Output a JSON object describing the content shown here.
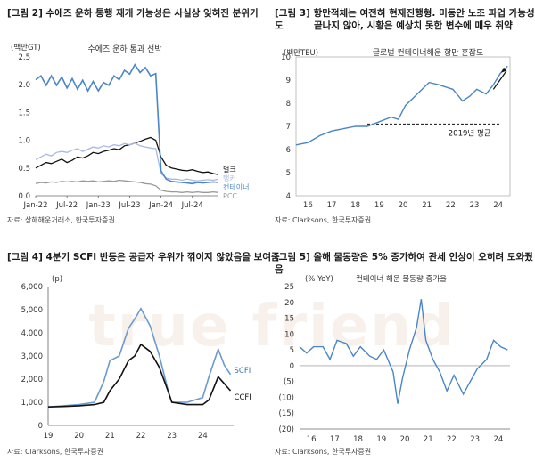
{
  "watermark": "true friend",
  "figures": [
    {
      "title": "[그림 2] 수에즈 운하 통행 재개 가능성은 사실상 잊혀진 분위기",
      "source": "자료: 상해해운거래소, 한국투자증권"
    },
    {
      "title_line1": "[그림 3] 항만적체는 여전히 현재진행형. 미동안 노조 파업 가능성도",
      "title_line2": "끝나지 않아, 시황은 예상치 못한 변수에 매우 취약",
      "source": "자료: Clarksons, 한국투자증권"
    },
    {
      "title": "[그림 4] 4분기 SCFI 반등은 공급자 우위가 꺾이지 않았음을 보여줌",
      "source": "자료: Clarksons, 한국투자증권"
    },
    {
      "title": "[그림 5] 올해 물동량은 5% 증가하여 관세 인상이 오히려 도와줬음",
      "source": "자료: Clarksons, 한국투자증권"
    }
  ],
  "chart_data": [
    {
      "type": "line",
      "title": "수에즈 운하 통과 선박",
      "ylabel": "(백만GT)",
      "ylim": [
        0,
        2.5
      ],
      "yticks": [
        "0.0",
        "0.5",
        "1.0",
        "1.5",
        "2.0",
        "2.5"
      ],
      "xticks": [
        "Jan-22",
        "Jul-22",
        "Jan-23",
        "Jul-23",
        "Jan-24",
        "Jul-24"
      ],
      "xtick_pos": [
        0,
        6,
        12,
        18,
        24,
        30
      ],
      "x_range_months": [
        0,
        35
      ],
      "legend": [
        "벌크",
        "탱커",
        "컨테이너",
        "PCC"
      ],
      "colors": [
        "#111111",
        "#aab8e6",
        "#4a86c8",
        "#999999"
      ],
      "series": [
        {
          "name": "벌크",
          "values": [
            0.5,
            0.55,
            0.6,
            0.58,
            0.62,
            0.66,
            0.6,
            0.64,
            0.7,
            0.68,
            0.72,
            0.78,
            0.76,
            0.8,
            0.82,
            0.85,
            0.83,
            0.9,
            0.92,
            0.95,
            0.98,
            1.02,
            1.05,
            1.0,
            0.7,
            0.55,
            0.5,
            0.48,
            0.46,
            0.45,
            0.47,
            0.44,
            0.42,
            0.43,
            0.4,
            0.38
          ]
        },
        {
          "name": "탱커",
          "values": [
            0.65,
            0.7,
            0.75,
            0.72,
            0.78,
            0.8,
            0.78,
            0.82,
            0.85,
            0.8,
            0.84,
            0.88,
            0.86,
            0.9,
            0.88,
            0.92,
            0.9,
            0.94,
            0.92,
            0.95,
            0.9,
            0.88,
            0.86,
            0.85,
            0.4,
            0.32,
            0.3,
            0.3,
            0.28,
            0.3,
            0.28,
            0.27,
            0.28,
            0.29,
            0.28,
            0.3
          ]
        },
        {
          "name": "컨테이너",
          "values": [
            2.15,
            2.1,
            2.05,
            2.1,
            2.05,
            2.08,
            2.0,
            2.05,
            1.98,
            2.02,
            1.95,
            2.0,
            1.95,
            1.98,
            2.05,
            2.1,
            2.15,
            2.2,
            2.25,
            2.3,
            2.28,
            2.25,
            2.22,
            2.2,
            0.45,
            0.3,
            0.26,
            0.25,
            0.24,
            0.23,
            0.22,
            0.24,
            0.23,
            0.24,
            0.25,
            0.24
          ]
        },
        {
          "name": "PCC",
          "values": [
            0.22,
            0.24,
            0.23,
            0.25,
            0.24,
            0.26,
            0.25,
            0.26,
            0.25,
            0.27,
            0.26,
            0.27,
            0.25,
            0.26,
            0.27,
            0.26,
            0.28,
            0.27,
            0.26,
            0.25,
            0.24,
            0.22,
            0.21,
            0.18,
            0.1,
            0.08,
            0.07,
            0.07,
            0.06,
            0.07,
            0.06,
            0.07,
            0.06,
            0.06,
            0.07,
            0.06
          ]
        }
      ]
    },
    {
      "type": "line",
      "title": "글로벌 컨테이너해운 항만 혼잡도",
      "ylabel": "(백만TEU)",
      "ylim": [
        4,
        10
      ],
      "yticks": [
        "4",
        "5",
        "6",
        "7",
        "8",
        "9",
        "10"
      ],
      "xticks": [
        "16",
        "17",
        "18",
        "19",
        "20",
        "21",
        "22",
        "23",
        "24"
      ],
      "x_range": [
        2016,
        2025
      ],
      "avg_label": "2019년 평균",
      "avg_value": 7.1,
      "series": [
        {
          "name": "항만 혼잡도",
          "x": [
            2016,
            2016.5,
            2017,
            2017.5,
            2018,
            2018.5,
            2019,
            2019.5,
            2020,
            2020.3,
            2020.6,
            2021,
            2021.3,
            2021.6,
            2022,
            2022.3,
            2022.6,
            2023,
            2023.3,
            2023.6,
            2024,
            2024.3,
            2024.6,
            2024.9
          ],
          "values": [
            6.2,
            6.3,
            6.6,
            6.8,
            6.9,
            7.0,
            7.0,
            7.2,
            7.4,
            7.3,
            7.9,
            8.3,
            8.6,
            8.9,
            8.8,
            8.7,
            8.6,
            8.1,
            8.3,
            8.6,
            8.4,
            8.8,
            9.3,
            9.6
          ]
        }
      ]
    },
    {
      "type": "line",
      "title": "",
      "ylabel": "(p)",
      "ylim": [
        0,
        6000
      ],
      "yticks": [
        "0",
        "1,000",
        "2,000",
        "3,000",
        "4,000",
        "5,000",
        "6,000"
      ],
      "xticks": [
        "19",
        "20",
        "21",
        "22",
        "23",
        "24"
      ],
      "x_range": [
        2019,
        2025
      ],
      "series": [
        {
          "name": "SCFI",
          "color": "#6a9bd1",
          "x": [
            2019,
            2019.5,
            2020,
            2020.5,
            2020.8,
            2021,
            2021.3,
            2021.6,
            2021.8,
            2022,
            2022.3,
            2022.6,
            2022.9,
            2023,
            2023.5,
            2024,
            2024.2,
            2024.5,
            2024.7,
            2024.9
          ],
          "values": [
            800,
            850,
            900,
            1000,
            1900,
            2800,
            3000,
            4200,
            4600,
            5050,
            4300,
            3000,
            1400,
            1000,
            1000,
            1200,
            2100,
            3300,
            2600,
            2200
          ]
        },
        {
          "name": "CCFI",
          "color": "#111111",
          "x": [
            2019,
            2019.5,
            2020,
            2020.5,
            2020.8,
            2021,
            2021.3,
            2021.6,
            2021.8,
            2022,
            2022.3,
            2022.6,
            2022.9,
            2023,
            2023.5,
            2024,
            2024.2,
            2024.5,
            2024.7,
            2024.9
          ],
          "values": [
            800,
            820,
            850,
            900,
            1000,
            1500,
            2000,
            2800,
            3000,
            3500,
            3200,
            2500,
            1400,
            1000,
            900,
            900,
            1100,
            2100,
            1800,
            1500
          ]
        }
      ]
    },
    {
      "type": "line",
      "title": "컨테이너 해운 물동량 증가율",
      "ylabel": "(% YoY)",
      "ylim": [
        -20,
        25
      ],
      "yticks": [
        "25",
        "20",
        "15",
        "10",
        "5",
        "0",
        "(5)",
        "(10)",
        "(15)",
        "(20)"
      ],
      "xticks": [
        "16",
        "17",
        "18",
        "19",
        "20",
        "21",
        "22",
        "23",
        "24"
      ],
      "x_range": [
        2016,
        2025
      ],
      "series": [
        {
          "name": "물동량 증가율",
          "x": [
            2016,
            2016.3,
            2016.6,
            2017,
            2017.3,
            2017.6,
            2018,
            2018.3,
            2018.6,
            2019,
            2019.3,
            2019.6,
            2020,
            2020.2,
            2020.4,
            2020.7,
            2021,
            2021.2,
            2021.4,
            2021.7,
            2022,
            2022.3,
            2022.6,
            2023,
            2023.3,
            2023.6,
            2024,
            2024.3,
            2024.6,
            2024.9
          ],
          "values": [
            6,
            4,
            6,
            6,
            2,
            8,
            7,
            3,
            6,
            3,
            2,
            5,
            -2,
            -12,
            -4,
            5,
            12,
            21,
            8,
            2,
            -2,
            -8,
            -3,
            -9,
            -5,
            -1,
            2,
            8,
            6,
            5
          ]
        }
      ]
    }
  ]
}
